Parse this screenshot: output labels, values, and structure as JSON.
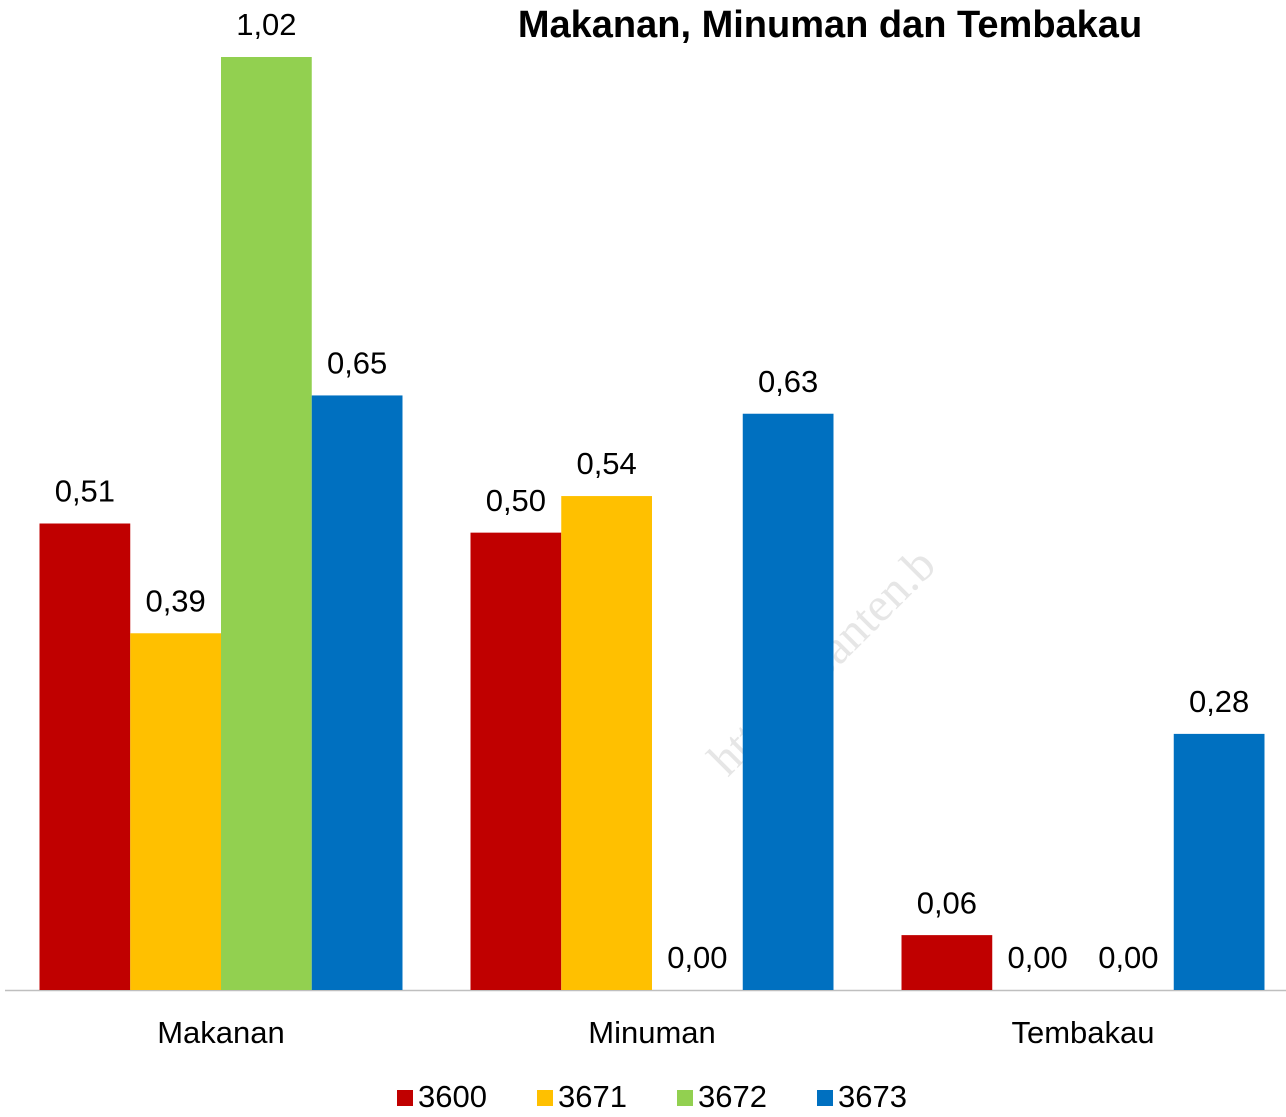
{
  "chart_data": {
    "type": "bar",
    "title": "Makanan, Minuman dan Tembakau",
    "watermark": "https://banten.b",
    "categories": [
      "Makanan",
      "Minuman",
      "Tembakau"
    ],
    "series": [
      {
        "name": "3600",
        "color": "#c00000",
        "values": [
          0.51,
          0.5,
          0.06
        ],
        "value_labels": [
          "0,51",
          "0,50",
          "0,06"
        ]
      },
      {
        "name": "3671",
        "color": "#ffc000",
        "values": [
          0.39,
          0.54,
          0.0
        ],
        "value_labels": [
          "0,39",
          "0,54",
          "0,00"
        ]
      },
      {
        "name": "3672",
        "color": "#92d050",
        "values": [
          1.02,
          0.0,
          0.0
        ],
        "value_labels": [
          "1,02",
          "0,00",
          "0,00"
        ]
      },
      {
        "name": "3673",
        "color": "#0070c0",
        "values": [
          0.65,
          0.63,
          0.28
        ],
        "value_labels": [
          "0,65",
          "0,63",
          "0,28"
        ]
      }
    ],
    "ylim": [
      0,
      1.02
    ]
  }
}
